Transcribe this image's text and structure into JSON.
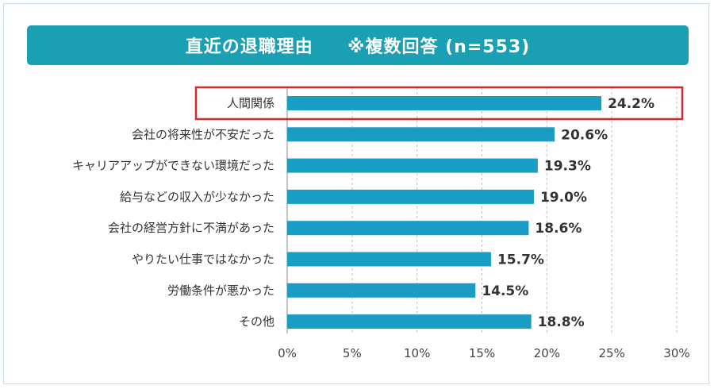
{
  "chart_data": {
    "type": "bar",
    "orientation": "horizontal",
    "title": "直近の退職理由",
    "subtitle": "※複数回答 (n=553)",
    "categories": [
      "人間関係",
      "会社の将来性が不安だった",
      "キャリアアップができない環境だった",
      "給与などの収入が少なかった",
      "会社の経営方針に不満があった",
      "やりたい仕事ではなかった",
      "労働条件が悪かった",
      "その他"
    ],
    "values": [
      24.2,
      20.6,
      19.3,
      19.0,
      18.6,
      15.7,
      14.5,
      18.8
    ],
    "value_labels": [
      "24.2%",
      "20.6%",
      "19.3%",
      "19.0%",
      "18.6%",
      "15.7%",
      "14.5%",
      "18.8%"
    ],
    "xlim": [
      0,
      30
    ],
    "xticks": [
      0,
      5,
      10,
      15,
      20,
      25,
      30
    ],
    "xtick_labels": [
      "0%",
      "5%",
      "10%",
      "15%",
      "20%",
      "25%",
      "30%"
    ],
    "highlighted_category": "人間関係",
    "grid": "vertical dashed",
    "legend": "none"
  },
  "colors": {
    "title_bar": "#1b9fb3",
    "bar": "#1a9dc5",
    "highlight_box": "#d22b2b",
    "grid": "#bfbfbf"
  }
}
